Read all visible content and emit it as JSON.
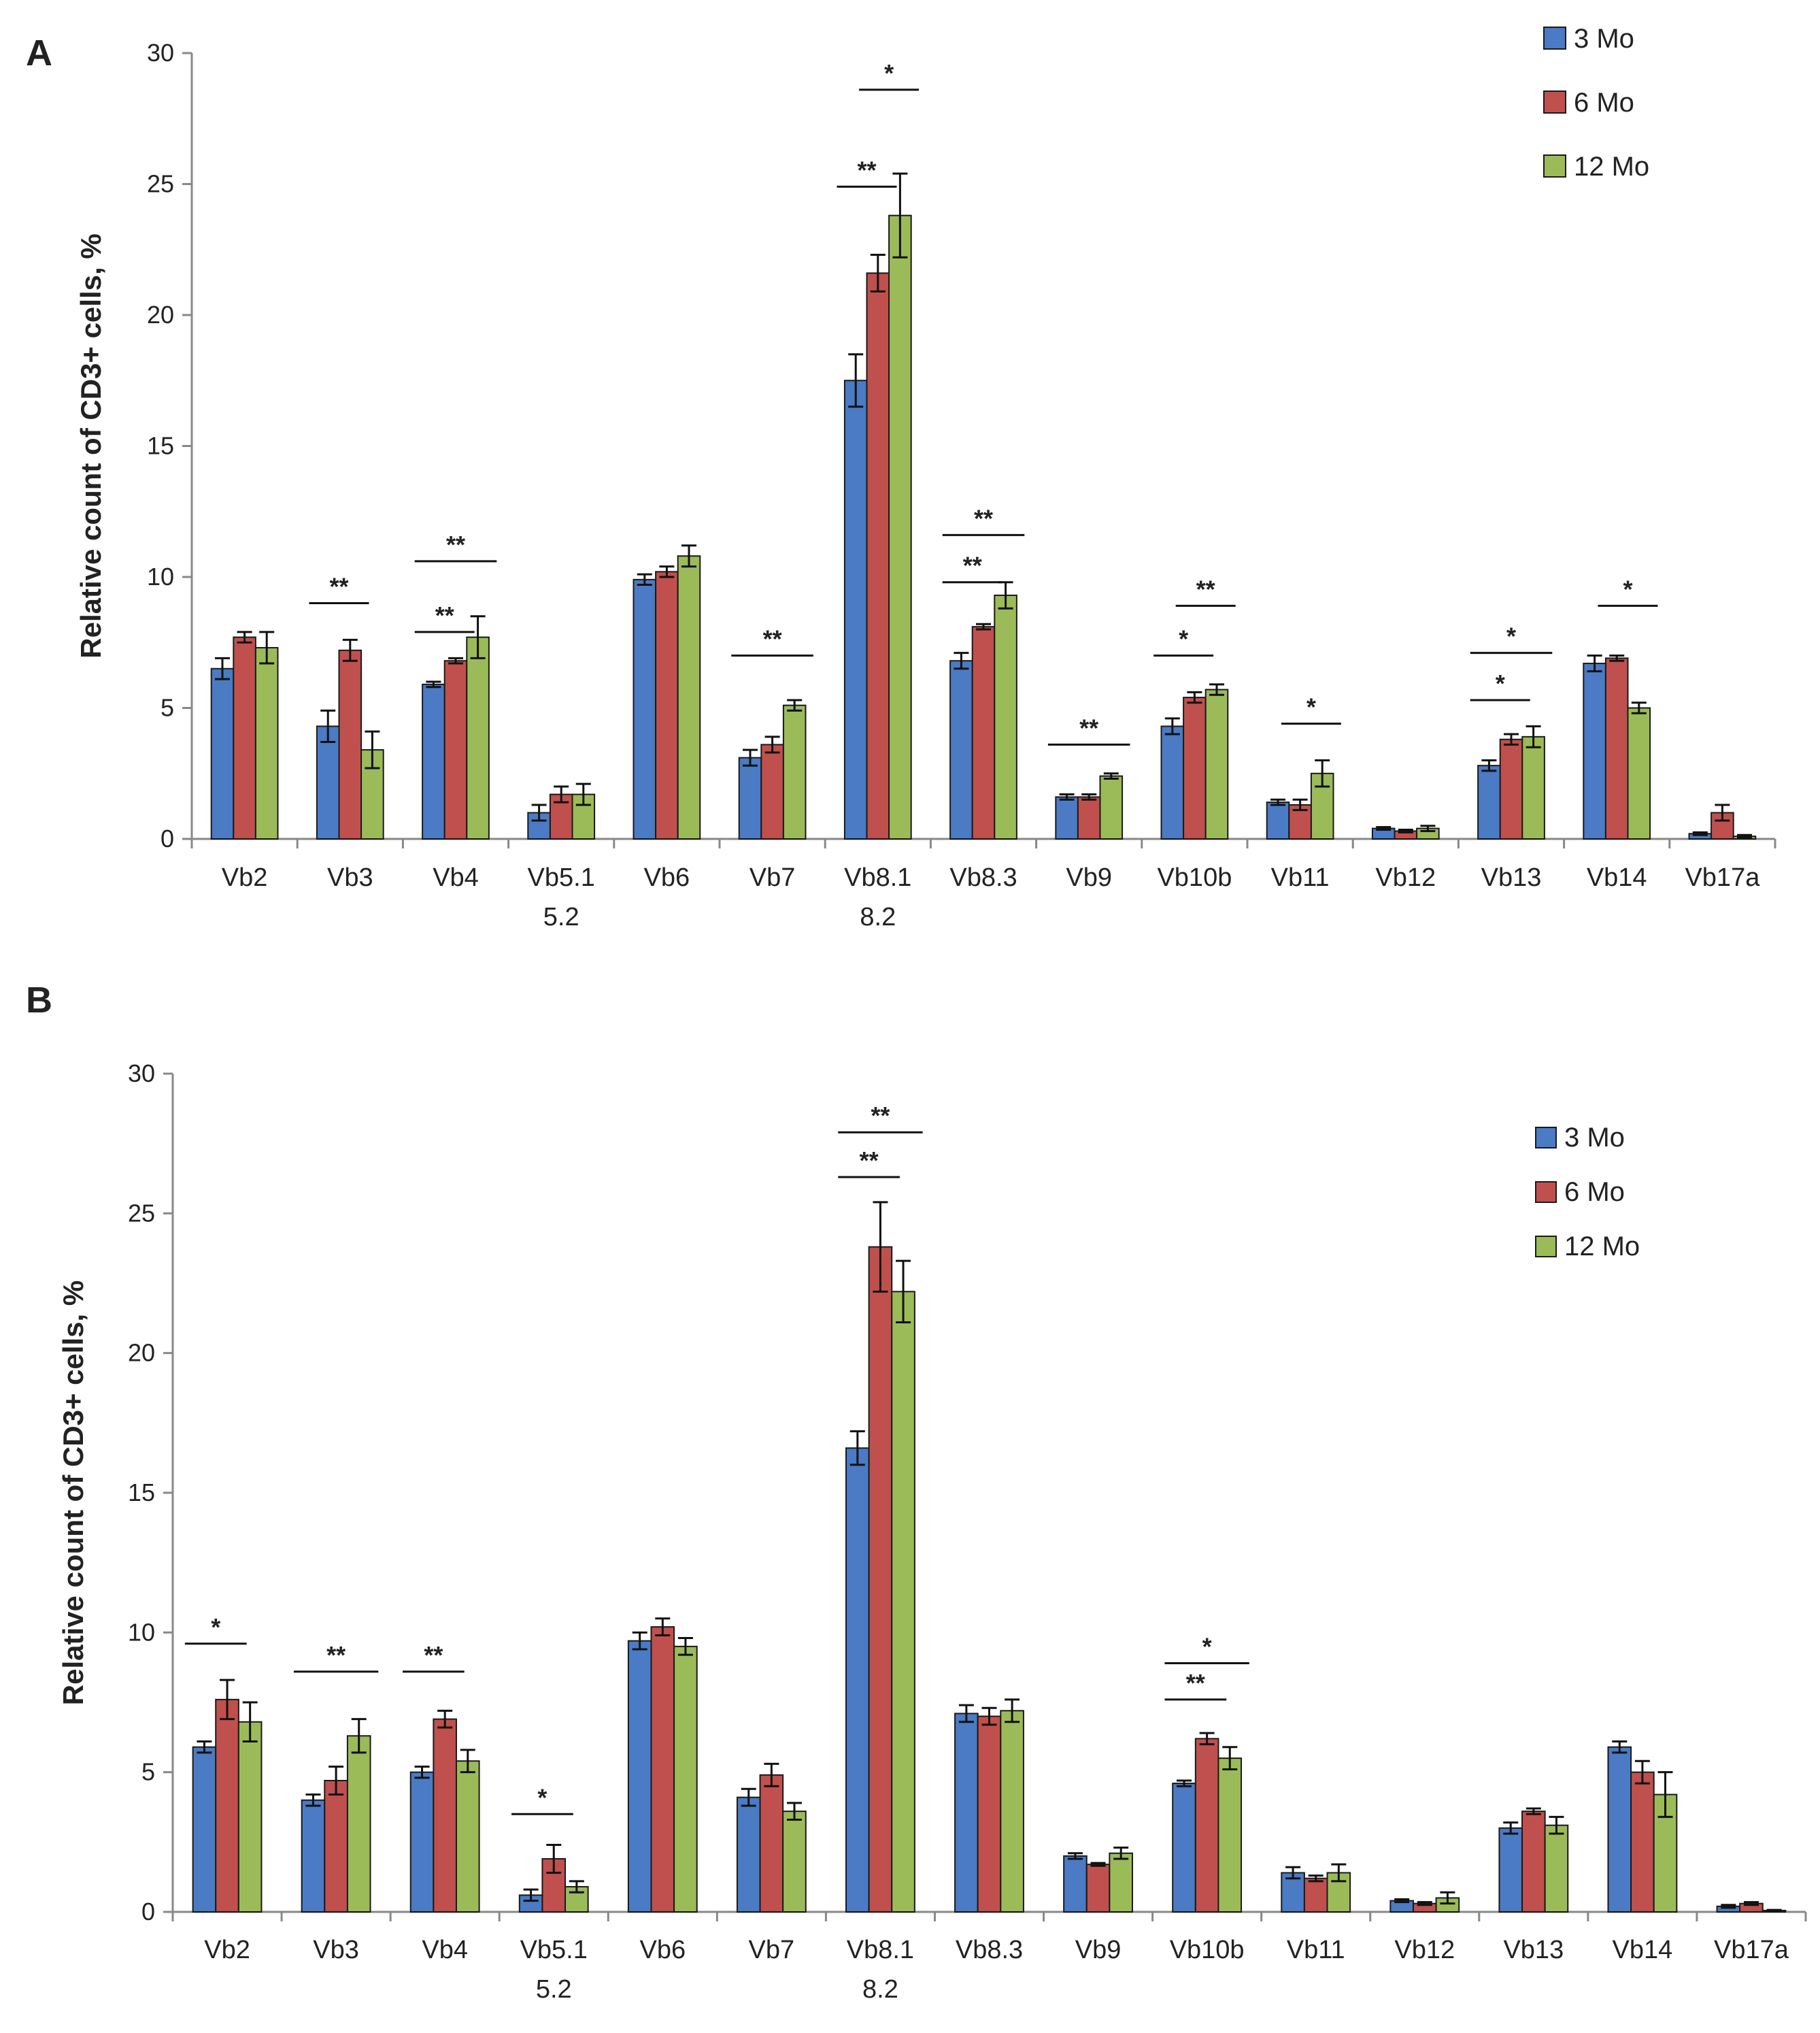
{
  "series": [
    {
      "name": "3 Mo",
      "color": "#4a7bc4"
    },
    {
      "name": "6 Mo",
      "color": "#c0504d"
    },
    {
      "name": "12 Mo",
      "color": "#9bbb59"
    }
  ],
  "chart_data": [
    {
      "type": "bar",
      "panel": "A",
      "ylabel": "Relative count of CD3+ cells, %",
      "ylim": [
        0,
        30
      ],
      "yticks": [
        0,
        5,
        10,
        15,
        20,
        25,
        30
      ],
      "categories": [
        "Vb2",
        "Vb3",
        "Vb4",
        "Vb5.1\n5.2",
        "Vb6",
        "Vb7",
        "Vb8.1\n8.2",
        "Vb8.3",
        "Vb9",
        "Vb10b",
        "Vb11",
        "Vb12",
        "Vb13",
        "Vb14",
        "Vb17a"
      ],
      "legend": [
        "3 Mo",
        "6 Mo",
        "12 Mo"
      ],
      "series": [
        {
          "name": "3 Mo",
          "values": [
            6.5,
            4.3,
            5.9,
            1.0,
            9.9,
            3.1,
            17.5,
            6.8,
            1.6,
            4.3,
            1.4,
            0.4,
            2.8,
            6.7,
            0.2
          ],
          "errors": [
            0.4,
            0.6,
            0.1,
            0.3,
            0.2,
            0.3,
            1.0,
            0.3,
            0.1,
            0.3,
            0.1,
            0.05,
            0.2,
            0.3,
            0.05
          ]
        },
        {
          "name": "6 Mo",
          "values": [
            7.7,
            7.2,
            6.8,
            1.7,
            10.2,
            3.6,
            21.6,
            8.1,
            1.6,
            5.4,
            1.3,
            0.3,
            3.8,
            6.9,
            1.0
          ],
          "errors": [
            0.2,
            0.4,
            0.1,
            0.3,
            0.2,
            0.3,
            0.7,
            0.1,
            0.1,
            0.2,
            0.2,
            0.05,
            0.2,
            0.1,
            0.3
          ]
        },
        {
          "name": "12 Mo",
          "values": [
            7.3,
            3.4,
            7.7,
            1.7,
            10.8,
            5.1,
            23.8,
            9.3,
            2.4,
            5.7,
            2.5,
            0.4,
            3.9,
            5.0,
            0.1
          ],
          "errors": [
            0.6,
            0.7,
            0.8,
            0.4,
            0.4,
            0.2,
            1.6,
            0.5,
            0.1,
            0.2,
            0.5,
            0.1,
            0.4,
            0.2,
            0.05
          ]
        }
      ],
      "significance": [
        {
          "label": "**",
          "cat": 1,
          "from": 0,
          "to": 1,
          "y": 9.0
        },
        {
          "label": "**",
          "cat": 2,
          "from": 0,
          "to": 1,
          "y": 7.9
        },
        {
          "label": "**",
          "cat": 2,
          "from": 0,
          "to": 2,
          "y": 10.6
        },
        {
          "label": "**",
          "cat": 5,
          "from": 0,
          "to": 2,
          "y": 7.0
        },
        {
          "label": "**",
          "cat": 6,
          "from": 0,
          "to": 1,
          "y": 24.9
        },
        {
          "label": "*",
          "cat": 6,
          "from": 1,
          "to": 2,
          "y": 28.6
        },
        {
          "label": "**",
          "cat": 7,
          "from": 0,
          "to": 1,
          "y": 9.8
        },
        {
          "label": "**",
          "cat": 7,
          "from": 0,
          "to": 2,
          "y": 11.6
        },
        {
          "label": "**",
          "cat": 8,
          "from": 0,
          "to": 2,
          "y": 3.6
        },
        {
          "label": "*",
          "cat": 9,
          "from": 0,
          "to": 1,
          "y": 7.0
        },
        {
          "label": "**",
          "cat": 9,
          "from": 1,
          "to": 2,
          "y": 8.9
        },
        {
          "label": "*",
          "cat": 10,
          "from": 1,
          "to": 2,
          "y": 4.4
        },
        {
          "label": "*",
          "cat": 12,
          "from": 0,
          "to": 1,
          "y": 5.3
        },
        {
          "label": "*",
          "cat": 12,
          "from": 0,
          "to": 2,
          "y": 7.1
        },
        {
          "label": "*",
          "cat": 13,
          "from": 1,
          "to": 2,
          "y": 8.9
        }
      ]
    },
    {
      "type": "bar",
      "panel": "B",
      "ylabel": "Relative count of CD3+ cells, %",
      "ylim": [
        0,
        30
      ],
      "yticks": [
        0,
        5,
        10,
        15,
        20,
        25,
        30
      ],
      "categories": [
        "Vb2",
        "Vb3",
        "Vb4",
        "Vb5.1\n5.2",
        "Vb6",
        "Vb7",
        "Vb8.1\n8.2",
        "Vb8.3",
        "Vb9",
        "Vb10b",
        "Vb11",
        "Vb12",
        "Vb13",
        "Vb14",
        "Vb17a"
      ],
      "legend": [
        "3 Mo",
        "6 Mo",
        "12 Mo"
      ],
      "series": [
        {
          "name": "3 Mo",
          "values": [
            5.9,
            4.0,
            5.0,
            0.6,
            9.7,
            4.1,
            16.6,
            7.1,
            2.0,
            4.6,
            1.4,
            0.4,
            3.0,
            5.9,
            0.2
          ],
          "errors": [
            0.2,
            0.2,
            0.2,
            0.2,
            0.3,
            0.3,
            0.6,
            0.3,
            0.1,
            0.1,
            0.2,
            0.05,
            0.2,
            0.2,
            0.05
          ]
        },
        {
          "name": "6 Mo",
          "values": [
            7.6,
            4.7,
            6.9,
            1.9,
            10.2,
            4.9,
            23.8,
            7.0,
            1.7,
            6.2,
            1.2,
            0.3,
            3.6,
            5.0,
            0.3
          ],
          "errors": [
            0.7,
            0.5,
            0.3,
            0.5,
            0.3,
            0.4,
            1.6,
            0.3,
            0.05,
            0.2,
            0.1,
            0.05,
            0.1,
            0.4,
            0.05
          ]
        },
        {
          "name": "12 Mo",
          "values": [
            6.8,
            6.3,
            5.4,
            0.9,
            9.5,
            3.6,
            22.2,
            7.2,
            2.1,
            5.5,
            1.4,
            0.5,
            3.1,
            4.2,
            0.05
          ],
          "errors": [
            0.7,
            0.6,
            0.4,
            0.2,
            0.3,
            0.3,
            1.1,
            0.4,
            0.2,
            0.4,
            0.3,
            0.2,
            0.3,
            0.8,
            0.02
          ]
        }
      ],
      "significance": [
        {
          "label": "*",
          "cat": 0,
          "from": 0,
          "to": 1,
          "y": 9.6
        },
        {
          "label": "**",
          "cat": 1,
          "from": 0,
          "to": 2,
          "y": 8.6
        },
        {
          "label": "**",
          "cat": 2,
          "from": 0,
          "to": 1,
          "y": 8.6
        },
        {
          "label": "*",
          "cat": 3,
          "from": 0,
          "to": 1,
          "y": 3.5
        },
        {
          "label": "**",
          "cat": 6,
          "from": 0,
          "to": 1,
          "y": 26.3
        },
        {
          "label": "**",
          "cat": 6,
          "from": 0,
          "to": 2,
          "y": 27.9
        },
        {
          "label": "**",
          "cat": 9,
          "from": 0,
          "to": 1,
          "y": 7.6
        },
        {
          "label": "*",
          "cat": 9,
          "from": 0,
          "to": 2,
          "y": 8.9
        }
      ]
    }
  ]
}
